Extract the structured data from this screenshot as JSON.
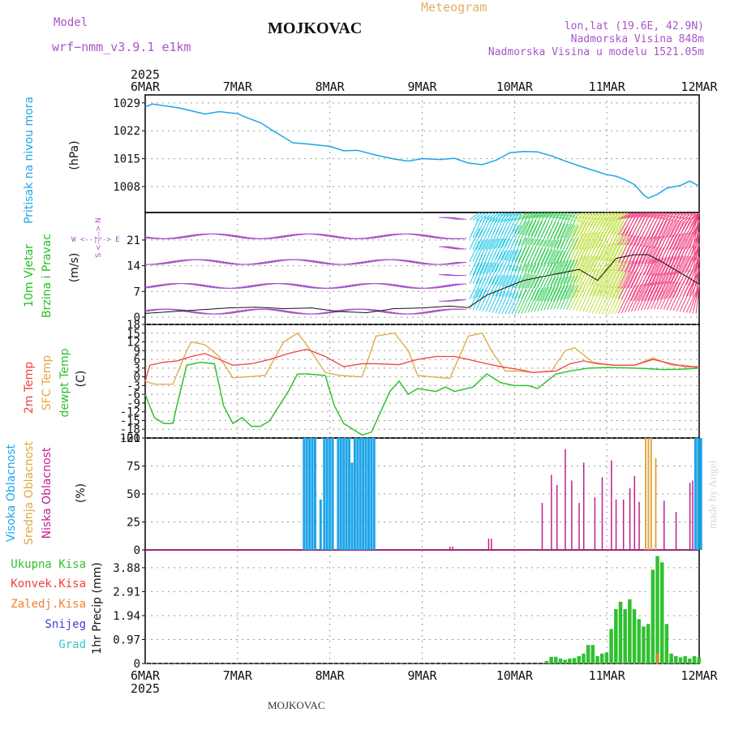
{
  "header": {
    "model_label": "Model",
    "model_name": "wrf−nmm_v3.9.1 e1km",
    "title": "MOJKOVAC",
    "meteogram_label": "Meteogram",
    "lonlat": "lon,lat (19.6E, 42.9N)",
    "elevation": "Nadmorska Visina 848m",
    "model_elevation": "Nadmorska Visina u modelu 1521.05m",
    "footer": "MOJKOVAC",
    "watermark": "made by Angel"
  },
  "colors": {
    "pressure": "#1ea5e8",
    "t2m": "#f04040",
    "sfc": "#e0a840",
    "dewpt": "#30c030",
    "high_cloud": "#1ea5e8",
    "mid_cloud": "#e0a840",
    "low_cloud": "#c0208a",
    "precip_total": "#30c030",
    "conv": "#f04040",
    "frozen": "#f08030",
    "snow": "#4040d0",
    "hail": "#30c8c8",
    "wind_label": "#20c020",
    "wind_purple": "#a855c8"
  },
  "chart_data": [
    {
      "type": "line",
      "panel": "pressure",
      "year": "2025",
      "categories": [
        "6MAR",
        "7MAR",
        "8MAR",
        "9MAR",
        "10MAR",
        "11MAR",
        "12MAR"
      ],
      "ylabel_left": "Pritisak na nivou mora",
      "ylabel_unit": "(hPa)",
      "yticks": [
        "1029",
        "1022",
        "1015",
        "1008"
      ],
      "ylim": [
        1001.5,
        1031
      ],
      "series": [
        {
          "name": "Pritisak na nivou mora",
          "x": [
            0,
            0.08,
            0.2,
            0.35,
            0.5,
            0.65,
            0.8,
            1.0,
            1.1,
            1.25,
            1.4,
            1.6,
            1.8,
            2.0,
            2.15,
            2.3,
            2.5,
            2.7,
            2.85,
            3.0,
            3.2,
            3.35,
            3.5,
            3.65,
            3.8,
            3.95,
            4.1,
            4.25,
            4.4,
            4.55,
            4.7,
            4.85,
            5.0,
            5.1,
            5.2,
            5.3,
            5.4,
            5.45,
            5.55,
            5.65,
            5.8,
            5.9,
            6.0
          ],
          "y": [
            1028,
            1028.7,
            1028.3,
            1027.8,
            1027,
            1026.2,
            1026.8,
            1026.3,
            1025.3,
            1024,
            1021.8,
            1019,
            1018.6,
            1018.1,
            1017,
            1017.1,
            1015.9,
            1014.9,
            1014.4,
            1015,
            1014.8,
            1015.1,
            1013.9,
            1013.5,
            1014.6,
            1016.5,
            1016.8,
            1016.7,
            1015.7,
            1014.4,
            1013.2,
            1012.1,
            1011,
            1010.6,
            1009.7,
            1008.5,
            1005.9,
            1005.1,
            1006.1,
            1007.6,
            1008.3,
            1009.4,
            1008.1
          ]
        }
      ]
    },
    {
      "type": "line",
      "panel": "wind",
      "ylabel_left": "10m Vjetar",
      "ylabel_left2": "Brzina i Pravac",
      "ylabel_unit": "(m/s)",
      "compass_labels": [
        "N",
        "S",
        "W",
        "E"
      ],
      "yticks": [
        "21",
        "14",
        "7",
        "0"
      ],
      "ylim": [
        -2,
        28.5
      ],
      "series": [
        {
          "name": "Brzina",
          "x": [
            0,
            0.3,
            0.6,
            0.9,
            1.2,
            1.5,
            1.8,
            2.1,
            2.4,
            2.7,
            3.0,
            3.3,
            3.5,
            3.7,
            3.9,
            4.1,
            4.3,
            4.5,
            4.7,
            4.9,
            5.1,
            5.3,
            5.45,
            5.6,
            5.8,
            6.0
          ],
          "y": [
            1,
            1.5,
            2,
            2.5,
            2.7,
            2.3,
            2.5,
            1.5,
            1.2,
            2.3,
            2.5,
            3,
            2.6,
            6,
            8,
            10,
            11,
            12,
            13,
            10,
            16,
            17,
            17,
            15,
            12,
            9
          ]
        }
      ]
    },
    {
      "type": "line",
      "panel": "temperature",
      "ylabel_left": "2m Temp",
      "ylabel_left2": "SFC Temp",
      "ylabel_left3": "dewpt Temp",
      "ylabel_unit": "(C)",
      "yticks": [
        "18",
        "15",
        "12",
        "9",
        "6",
        "3",
        "0",
        "-3",
        "-6",
        "-9",
        "-12",
        "-15",
        "-18",
        "-21"
      ],
      "ylim": [
        -21,
        18
      ],
      "series": [
        {
          "name": "2m Temp",
          "x": [
            0,
            0.05,
            0.2,
            0.35,
            0.5,
            0.65,
            0.8,
            0.95,
            1.15,
            1.35,
            1.55,
            1.75,
            1.95,
            2.15,
            2.35,
            2.5,
            2.75,
            2.95,
            3.15,
            3.35,
            3.5,
            3.7,
            3.85,
            4.05,
            4.2,
            4.45,
            4.6,
            4.75,
            4.9,
            5.1,
            5.3,
            5.5,
            5.7,
            5.85,
            6.0
          ],
          "y": [
            -1.5,
            4,
            5,
            5.5,
            7,
            8,
            6,
            4,
            4.5,
            6,
            8,
            9.5,
            7,
            3.5,
            4.5,
            4.5,
            4.2,
            6,
            7,
            7,
            6,
            4.5,
            3.5,
            2.5,
            1.5,
            2,
            4.5,
            5.5,
            4.5,
            4,
            4,
            6,
            4.5,
            3.5,
            3.5
          ]
        },
        {
          "name": "SFC Temp",
          "x": [
            0,
            0.1,
            0.3,
            0.45,
            0.5,
            0.65,
            0.8,
            0.95,
            1.1,
            1.3,
            1.5,
            1.65,
            1.75,
            1.95,
            2.1,
            2.35,
            2.5,
            2.7,
            2.85,
            2.95,
            3.1,
            3.3,
            3.5,
            3.65,
            3.75,
            3.9,
            4.05,
            4.2,
            4.4,
            4.55,
            4.65,
            4.85,
            5.05,
            5.3,
            5.5,
            5.7,
            5.85,
            6.0
          ],
          "y": [
            -1.5,
            -2.5,
            -2.5,
            9,
            12,
            11,
            7,
            -0.3,
            0,
            0.5,
            12,
            15,
            11,
            1.5,
            0.5,
            0,
            14,
            15,
            9,
            0.5,
            0,
            -0.5,
            14,
            15,
            9,
            2,
            2,
            1.5,
            2,
            9,
            10,
            5,
            4,
            4,
            6.5,
            4,
            4,
            3
          ]
        },
        {
          "name": "dewpt Temp",
          "x": [
            0,
            0.1,
            0.2,
            0.3,
            0.35,
            0.45,
            0.6,
            0.75,
            0.85,
            0.95,
            1.05,
            1.15,
            1.25,
            1.35,
            1.55,
            1.65,
            1.75,
            1.95,
            2.05,
            2.15,
            2.25,
            2.35,
            2.45,
            2.55,
            2.65,
            2.75,
            2.85,
            2.95,
            3.15,
            3.25,
            3.35,
            3.55,
            3.7,
            3.85,
            4.0,
            4.15,
            4.25,
            4.45,
            4.6,
            4.8,
            5.0,
            5.2,
            5.4,
            5.6,
            5.8,
            6.0
          ],
          "y": [
            -6,
            -14,
            -16,
            -16,
            -9,
            4,
            5,
            4.5,
            -10,
            -16,
            -14,
            -17,
            -17,
            -15,
            -5,
            1,
            1,
            0.5,
            -10,
            -16,
            -18,
            -20,
            -19,
            -12,
            -5,
            -1.5,
            -6,
            -4,
            -5,
            -3.5,
            -5,
            -3.5,
            1,
            -2,
            -3,
            -3,
            -4,
            1,
            2,
            3,
            3.2,
            3.1,
            2.9,
            2.5,
            2.6,
            3
          ]
        }
      ]
    },
    {
      "type": "bar",
      "panel": "clouds",
      "ylabel_left": "Visoka Oblacnost",
      "ylabel_left2": "Srednja Oblacnost",
      "ylabel_left3": "Niska Oblacnost",
      "ylabel_unit": "(%)",
      "yticks": [
        "100",
        "75",
        "50",
        "25",
        "0"
      ],
      "ylim": [
        0,
        100
      ],
      "series": [
        {
          "name": "Visoka Oblacnost",
          "x": [
            1.72,
            1.75,
            1.78,
            1.81,
            1.84,
            1.9,
            1.94,
            1.97,
            2.0,
            2.03,
            2.09,
            2.12,
            2.15,
            2.18,
            2.21,
            2.24,
            2.27,
            2.3,
            2.33,
            2.36,
            2.39,
            2.42,
            2.45,
            2.48,
            5.96,
            5.99,
            6.02
          ],
          "y": [
            100,
            100,
            100,
            100,
            100,
            45,
            100,
            100,
            100,
            100,
            100,
            100,
            100,
            100,
            100,
            78,
            100,
            100,
            100,
            100,
            100,
            100,
            100,
            100,
            100,
            100,
            100
          ]
        },
        {
          "name": "Srednja Oblacnost",
          "x": [
            5.42,
            5.45,
            5.48,
            5.53
          ],
          "y": [
            100,
            100,
            100,
            82
          ]
        },
        {
          "name": "Niska Oblacnost",
          "x": [
            3.3,
            3.33,
            3.72,
            3.75,
            4.3,
            4.4,
            4.46,
            4.55,
            4.62,
            4.7,
            4.75,
            4.87,
            4.95,
            5.05,
            5.1,
            5.18,
            5.25,
            5.3,
            5.35,
            5.62,
            5.75,
            5.9,
            5.93
          ],
          "y": [
            3,
            3,
            10,
            10,
            42,
            67,
            58,
            90,
            62,
            42,
            78,
            47,
            65,
            80,
            45,
            45,
            55,
            66,
            43,
            44,
            34,
            60,
            62
          ]
        }
      ]
    },
    {
      "type": "bar",
      "panel": "precip",
      "ylabel_left_items": [
        "Ukupna Kisa",
        "Konvek.Kisa",
        "Zaledj.Kisa",
        "Snijeg",
        "Grad"
      ],
      "ylabel_unit": "1hr Precip (mm)",
      "yticks": [
        "3.88",
        "2.91",
        "1.94",
        "0.97",
        "0"
      ],
      "ylim": [
        0,
        4.6
      ],
      "series": [
        {
          "name": "Ukupna Kisa",
          "x": [
            4.35,
            4.4,
            4.45,
            4.5,
            4.55,
            4.6,
            4.65,
            4.7,
            4.75,
            4.8,
            4.85,
            4.9,
            4.95,
            5.0,
            5.05,
            5.1,
            5.15,
            5.2,
            5.25,
            5.3,
            5.35,
            5.4,
            5.45,
            5.5,
            5.55,
            5.6,
            5.65,
            5.7,
            5.75,
            5.8,
            5.85,
            5.9,
            5.95,
            6.0
          ],
          "y": [
            0.1,
            0.27,
            0.27,
            0.2,
            0.15,
            0.2,
            0.22,
            0.3,
            0.4,
            0.75,
            0.75,
            0.3,
            0.4,
            0.45,
            1.4,
            2.2,
            2.5,
            2.2,
            2.6,
            2.2,
            1.8,
            1.5,
            1.6,
            3.8,
            4.35,
            4.1,
            1.6,
            0.4,
            0.3,
            0.25,
            0.3,
            0.2,
            0.3,
            0.25
          ]
        },
        {
          "name": "Zaledj.Kisa",
          "x": [
            5.55
          ],
          "y": [
            0.4
          ]
        }
      ]
    }
  ]
}
